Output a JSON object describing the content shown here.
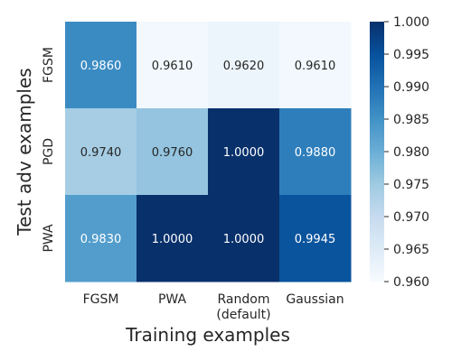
{
  "chart_data": {
    "type": "heatmap",
    "xlabel": "Training examples",
    "ylabel": "Test adv examples",
    "x_categories": [
      "FGSM",
      "PWA",
      "Random\n(default)",
      "Gaussian"
    ],
    "y_categories": [
      "FGSM",
      "PGD",
      "PWA"
    ],
    "values": [
      [
        0.986,
        0.961,
        0.962,
        0.961
      ],
      [
        0.974,
        0.976,
        1.0,
        0.988
      ],
      [
        0.983,
        1.0,
        1.0,
        0.9945
      ]
    ],
    "cell_labels": [
      [
        "0.9860",
        "0.9610",
        "0.9620",
        "0.9610"
      ],
      [
        "0.9740",
        "0.9760",
        "1.0000",
        "0.9880"
      ],
      [
        "0.9830",
        "1.0000",
        "1.0000",
        "0.9945"
      ]
    ],
    "colorbar": {
      "range": [
        0.96,
        1.0
      ],
      "ticks": [
        "0.960",
        "0.965",
        "0.970",
        "0.975",
        "0.980",
        "0.985",
        "0.990",
        "0.995",
        "1.000"
      ],
      "colormap": "Blues"
    }
  }
}
